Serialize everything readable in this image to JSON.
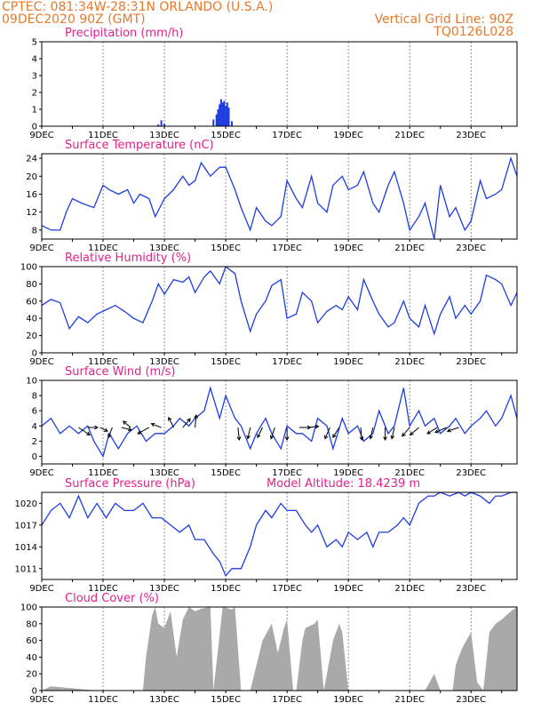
{
  "header": {
    "line1_left": "CPTEC:   081:34W-28:31N   ORLANDO (U.S.A.)",
    "line2_left": "09DEC2020 90Z (GMT)",
    "line1_right": "Vertical Grid Line: 90Z",
    "line2_right": "TQ0126L028"
  },
  "x_tick_labels": [
    "9DEC",
    "11DEC",
    "13DEC",
    "15DEC",
    "17DEC",
    "19DEC",
    "21DEC",
    "23DEC"
  ],
  "colors": {
    "line": "#1e3de0",
    "title": "#e0218a",
    "header": "#e8792a",
    "cloud": "#a9a9a9"
  },
  "chart_data": [
    {
      "type": "bar",
      "title": "Precipitation (mm/h)",
      "ylim": [
        0,
        5
      ],
      "yticks": [
        0,
        1,
        2,
        3,
        4,
        5
      ],
      "xlim": [
        0,
        15.5
      ],
      "x": [
        3.8,
        3.9,
        4.0,
        5.6,
        5.7,
        5.75,
        5.8,
        5.85,
        5.9,
        5.95,
        6.0,
        6.05,
        6.1,
        6.2
      ],
      "values": [
        0.1,
        0.35,
        0.15,
        0.4,
        0.7,
        1.0,
        1.3,
        1.6,
        1.4,
        1.5,
        1.2,
        1.4,
        1.1,
        0.3
      ]
    },
    {
      "type": "line",
      "title": "Surface Temperature (nC)",
      "ylim": [
        6,
        25
      ],
      "yticks": [
        8,
        12,
        16,
        20,
        24
      ],
      "xlim": [
        0,
        15.5
      ],
      "x": [
        0,
        0.3,
        0.6,
        0.8,
        1.0,
        1.3,
        1.7,
        2.0,
        2.2,
        2.5,
        2.8,
        3.0,
        3.2,
        3.5,
        3.7,
        4.0,
        4.3,
        4.6,
        4.8,
        5.0,
        5.2,
        5.5,
        5.8,
        6.0,
        6.3,
        6.5,
        6.8,
        7.0,
        7.3,
        7.5,
        7.8,
        8.0,
        8.3,
        8.5,
        8.8,
        9.0,
        9.3,
        9.5,
        9.8,
        10.0,
        10.3,
        10.5,
        10.8,
        11.0,
        11.3,
        11.5,
        11.8,
        12.0,
        12.3,
        12.5,
        12.8,
        13.0,
        13.3,
        13.5,
        13.8,
        14.0,
        14.3,
        14.5,
        14.8,
        15.0,
        15.3,
        15.5
      ],
      "values": [
        9,
        8,
        8,
        12,
        15,
        14,
        13,
        18,
        17,
        16,
        17,
        14,
        16,
        15,
        11,
        15,
        17,
        20,
        18,
        19,
        23,
        20,
        22,
        22,
        17,
        13,
        8,
        13,
        10,
        9,
        11,
        19,
        15,
        13,
        20,
        14,
        12,
        18,
        20,
        17,
        18,
        21,
        14,
        12,
        18,
        21,
        14,
        8,
        11,
        14,
        6,
        18,
        11,
        13,
        8,
        10,
        19,
        15,
        16,
        17,
        24,
        20
      ]
    },
    {
      "type": "line",
      "title": "Relative Humidity (%)",
      "ylim": [
        0,
        100
      ],
      "yticks": [
        0,
        20,
        40,
        60,
        80,
        100
      ],
      "xlim": [
        0,
        15.5
      ],
      "x": [
        0,
        0.3,
        0.6,
        0.9,
        1.2,
        1.5,
        1.8,
        2.1,
        2.4,
        2.7,
        3.0,
        3.3,
        3.6,
        3.8,
        4.0,
        4.3,
        4.6,
        4.8,
        5.0,
        5.3,
        5.5,
        5.8,
        6.0,
        6.3,
        6.5,
        6.8,
        7.0,
        7.3,
        7.5,
        7.8,
        8.0,
        8.3,
        8.5,
        8.8,
        9.0,
        9.3,
        9.6,
        9.8,
        10.0,
        10.3,
        10.5,
        10.8,
        11.0,
        11.3,
        11.5,
        11.8,
        12.0,
        12.3,
        12.5,
        12.8,
        13.0,
        13.3,
        13.5,
        13.8,
        14.0,
        14.3,
        14.5,
        14.8,
        15.0,
        15.3,
        15.5
      ],
      "values": [
        55,
        62,
        58,
        28,
        42,
        35,
        45,
        50,
        55,
        48,
        40,
        35,
        60,
        80,
        68,
        85,
        82,
        88,
        70,
        88,
        95,
        80,
        100,
        92,
        60,
        25,
        45,
        60,
        78,
        85,
        40,
        45,
        70,
        60,
        35,
        48,
        55,
        50,
        65,
        50,
        85,
        60,
        45,
        30,
        35,
        60,
        40,
        30,
        55,
        22,
        45,
        65,
        40,
        55,
        45,
        60,
        90,
        85,
        80,
        55,
        70
      ]
    },
    {
      "type": "line",
      "title": "Surface Wind (m/s)",
      "ylim": [
        -1,
        10
      ],
      "yticks": [
        0,
        2,
        4,
        6,
        8,
        10
      ],
      "xlim": [
        0,
        15.5
      ],
      "x": [
        0,
        0.3,
        0.6,
        0.9,
        1.2,
        1.5,
        1.7,
        2.0,
        2.2,
        2.5,
        2.8,
        3.1,
        3.4,
        3.7,
        4.0,
        4.3,
        4.5,
        4.8,
        5.0,
        5.3,
        5.5,
        5.8,
        6.0,
        6.3,
        6.5,
        6.8,
        7.0,
        7.3,
        7.5,
        7.8,
        8.0,
        8.3,
        8.5,
        8.8,
        9.0,
        9.3,
        9.5,
        9.8,
        10.0,
        10.3,
        10.5,
        10.8,
        11.0,
        11.3,
        11.5,
        11.8,
        12.0,
        12.3,
        12.5,
        12.8,
        13.0,
        13.3,
        13.5,
        13.8,
        14.0,
        14.3,
        14.5,
        14.8,
        15.0,
        15.3,
        15.5
      ],
      "values": [
        4,
        5,
        3,
        4,
        3,
        4,
        2,
        0,
        3,
        1,
        3,
        4,
        2,
        3,
        3,
        4,
        5,
        4,
        5,
        6,
        9,
        5,
        8,
        5,
        4,
        1,
        3,
        5,
        3,
        1,
        4,
        3,
        3,
        2,
        5,
        4,
        1,
        5,
        3,
        4,
        2,
        3,
        6,
        3,
        4,
        9,
        4,
        6,
        4,
        5,
        3,
        4,
        5,
        3,
        4,
        5,
        6,
        4,
        5,
        8,
        5
      ]
    },
    {
      "type": "line",
      "title": "Surface Pressure (hPa)",
      "annotation": "Model Altitude: 18.4239  m",
      "ylim": [
        1009.5,
        1021.5
      ],
      "yticks": [
        1011,
        1014,
        1017,
        1020
      ],
      "xlim": [
        0,
        15.5
      ],
      "x": [
        0,
        0.3,
        0.6,
        0.9,
        1.2,
        1.5,
        1.8,
        2.1,
        2.4,
        2.7,
        3.0,
        3.3,
        3.6,
        3.9,
        4.2,
        4.5,
        4.8,
        5.0,
        5.3,
        5.6,
        5.8,
        6.0,
        6.2,
        6.5,
        6.8,
        7.0,
        7.3,
        7.5,
        7.8,
        8.0,
        8.3,
        8.6,
        8.8,
        9.0,
        9.3,
        9.6,
        9.8,
        10.0,
        10.3,
        10.6,
        10.8,
        11.0,
        11.3,
        11.6,
        11.8,
        12.0,
        12.3,
        12.6,
        12.8,
        13.0,
        13.3,
        13.6,
        13.8,
        14.0,
        14.3,
        14.6,
        14.8,
        15.0,
        15.3,
        15.5
      ],
      "values": [
        1017,
        1019,
        1020,
        1018,
        1021,
        1018,
        1020,
        1018,
        1020,
        1019,
        1019,
        1020,
        1018,
        1018,
        1017,
        1016,
        1017,
        1015,
        1015,
        1013,
        1012,
        1010,
        1011,
        1011,
        1014,
        1017,
        1019,
        1018,
        1020,
        1019,
        1019,
        1017,
        1016,
        1017,
        1014,
        1015,
        1014,
        1016,
        1015,
        1016,
        1014,
        1016,
        1016,
        1017,
        1018,
        1017,
        1020,
        1021,
        1021,
        1022,
        1021,
        1022,
        1021,
        1022,
        1021,
        1020,
        1021,
        1021,
        1022,
        1022
      ]
    },
    {
      "type": "area",
      "title": "Cloud Cover (%)",
      "ylim": [
        0,
        100
      ],
      "yticks": [
        0,
        20,
        40,
        60,
        80,
        100
      ],
      "xlim": [
        0,
        15.5
      ],
      "x": [
        0,
        0.3,
        1.8,
        3.3,
        3.4,
        3.6,
        3.7,
        3.8,
        4.0,
        4.2,
        4.4,
        4.6,
        4.8,
        5.0,
        5.2,
        5.5,
        5.6,
        5.9,
        6.2,
        6.3,
        6.5,
        6.8,
        7.0,
        7.2,
        7.5,
        7.7,
        7.9,
        8.0,
        8.2,
        8.3,
        8.5,
        8.6,
        8.9,
        9.0,
        9.2,
        9.5,
        9.7,
        9.8,
        10.0,
        10.4,
        10.5,
        12.5,
        12.8,
        13.0,
        13.4,
        13.5,
        13.7,
        14.0,
        14.2,
        14.4,
        14.6,
        14.8,
        15.0,
        15.3,
        15.5
      ],
      "values": [
        0,
        5,
        0,
        0,
        40,
        90,
        100,
        80,
        75,
        95,
        40,
        85,
        100,
        95,
        98,
        100,
        0,
        100,
        97,
        100,
        0,
        0,
        30,
        60,
        80,
        45,
        75,
        85,
        0,
        0,
        60,
        75,
        80,
        85,
        0,
        60,
        80,
        70,
        0,
        0,
        0,
        0,
        20,
        0,
        0,
        30,
        50,
        70,
        10,
        0,
        70,
        80,
        85,
        95,
        100
      ]
    }
  ],
  "panels": [
    {
      "title": "Precipitation (mm/h)"
    },
    {
      "title": "Surface Temperature (nC)"
    },
    {
      "title": "Relative Humidity (%)"
    },
    {
      "title": "Surface Wind (m/s)"
    },
    {
      "title": "Surface Pressure (hPa)",
      "annotation": "Model Altitude: 18.4239  m"
    },
    {
      "title": "Cloud Cover (%)"
    }
  ],
  "wind_arrows": [
    {
      "x": 1.2,
      "u": 0.9,
      "v": -0.6
    },
    {
      "x": 1.5,
      "u": 0.8,
      "v": 0.0
    },
    {
      "x": 1.9,
      "u": 0.6,
      "v": -0.3
    },
    {
      "x": 2.3,
      "u": -0.3,
      "v": -0.8
    },
    {
      "x": 2.6,
      "u": 0.8,
      "v": -0.2
    },
    {
      "x": 2.9,
      "u": -0.6,
      "v": 0.5
    },
    {
      "x": 3.5,
      "u": -0.9,
      "v": -0.5
    },
    {
      "x": 3.9,
      "u": -0.8,
      "v": 0.3
    },
    {
      "x": 4.3,
      "u": -0.4,
      "v": 0.8
    },
    {
      "x": 4.6,
      "u": 0.6,
      "v": 0.7
    },
    {
      "x": 5.0,
      "u": 0.1,
      "v": 1.0
    },
    {
      "x": 6.4,
      "u": 0.1,
      "v": -1.0
    },
    {
      "x": 6.8,
      "u": -0.2,
      "v": -0.9
    },
    {
      "x": 7.2,
      "u": -0.4,
      "v": -0.8
    },
    {
      "x": 7.6,
      "u": -0.3,
      "v": -0.9
    },
    {
      "x": 8.0,
      "u": 0.0,
      "v": -1.0
    },
    {
      "x": 8.4,
      "u": 0.9,
      "v": 0.0
    },
    {
      "x": 8.7,
      "u": 0.8,
      "v": 0.1
    },
    {
      "x": 9.4,
      "u": -0.4,
      "v": -0.9
    },
    {
      "x": 9.7,
      "u": -0.5,
      "v": -0.8
    },
    {
      "x": 10.4,
      "u": 0.1,
      "v": -1.0
    },
    {
      "x": 10.8,
      "u": -0.2,
      "v": -0.9
    },
    {
      "x": 11.2,
      "u": 0.0,
      "v": -1.0
    },
    {
      "x": 11.5,
      "u": -0.2,
      "v": -0.9
    },
    {
      "x": 12.0,
      "u": -0.6,
      "v": -0.7
    },
    {
      "x": 12.3,
      "u": -0.7,
      "v": -0.6
    },
    {
      "x": 12.9,
      "u": -0.8,
      "v": -0.5
    },
    {
      "x": 13.2,
      "u": -0.9,
      "v": -0.4
    },
    {
      "x": 13.6,
      "u": -0.9,
      "v": -0.3
    }
  ]
}
